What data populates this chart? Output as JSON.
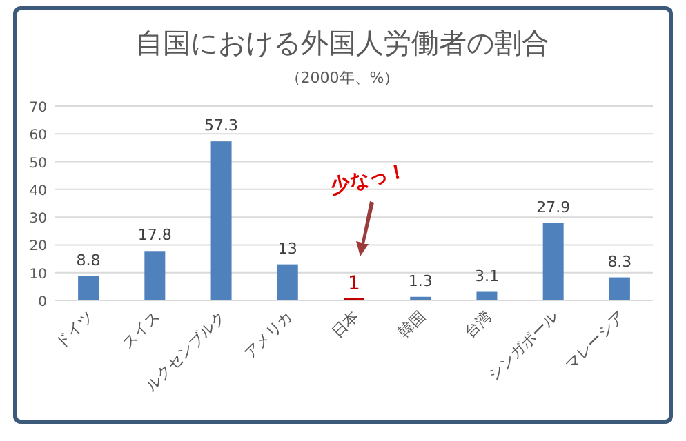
{
  "chart_data": {
    "type": "bar",
    "title": "自国における外国人労働者の割合",
    "subtitle": "（2000年、%）",
    "categories": [
      "ドイツ",
      "スイス",
      "ルクセンブルク",
      "アメリカ",
      "日本",
      "韓国",
      "台湾",
      "シンガポール",
      "マレーシア"
    ],
    "values": [
      8.8,
      17.8,
      57.3,
      13,
      1,
      1.3,
      3.1,
      27.9,
      8.3
    ],
    "colors": [
      "#4f81bd",
      "#4f81bd",
      "#4f81bd",
      "#4f81bd",
      "#c00000",
      "#4f81bd",
      "#4f81bd",
      "#4f81bd",
      "#4f81bd"
    ],
    "ylim": [
      0,
      70
    ],
    "yticks": [
      0,
      10,
      20,
      30,
      40,
      50,
      60,
      70
    ],
    "grid": "y",
    "data_labels": true,
    "annotations": [
      "少なっ！"
    ]
  }
}
